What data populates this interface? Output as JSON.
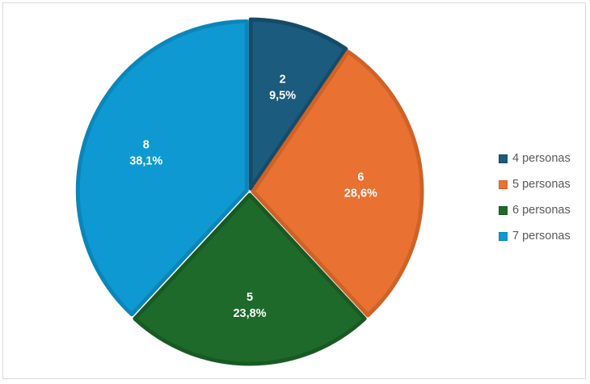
{
  "chart_data": {
    "type": "pie",
    "categories": [
      "4 personas",
      "5 personas",
      "6 personas",
      "7 personas"
    ],
    "values": [
      2,
      6,
      5,
      8
    ],
    "percent_labels": [
      "9,5%",
      "28,6%",
      "23,8%",
      "38,1%"
    ],
    "colors": [
      "#1b5b7d",
      "#e97131",
      "#1e6a2b",
      "#0f99d3"
    ],
    "edge_colors": [
      "#154b68",
      "#cf6227",
      "#185a23",
      "#0c85b8"
    ],
    "legend_position": "right",
    "start_angle_deg": 0,
    "direction": "clockwise"
  }
}
